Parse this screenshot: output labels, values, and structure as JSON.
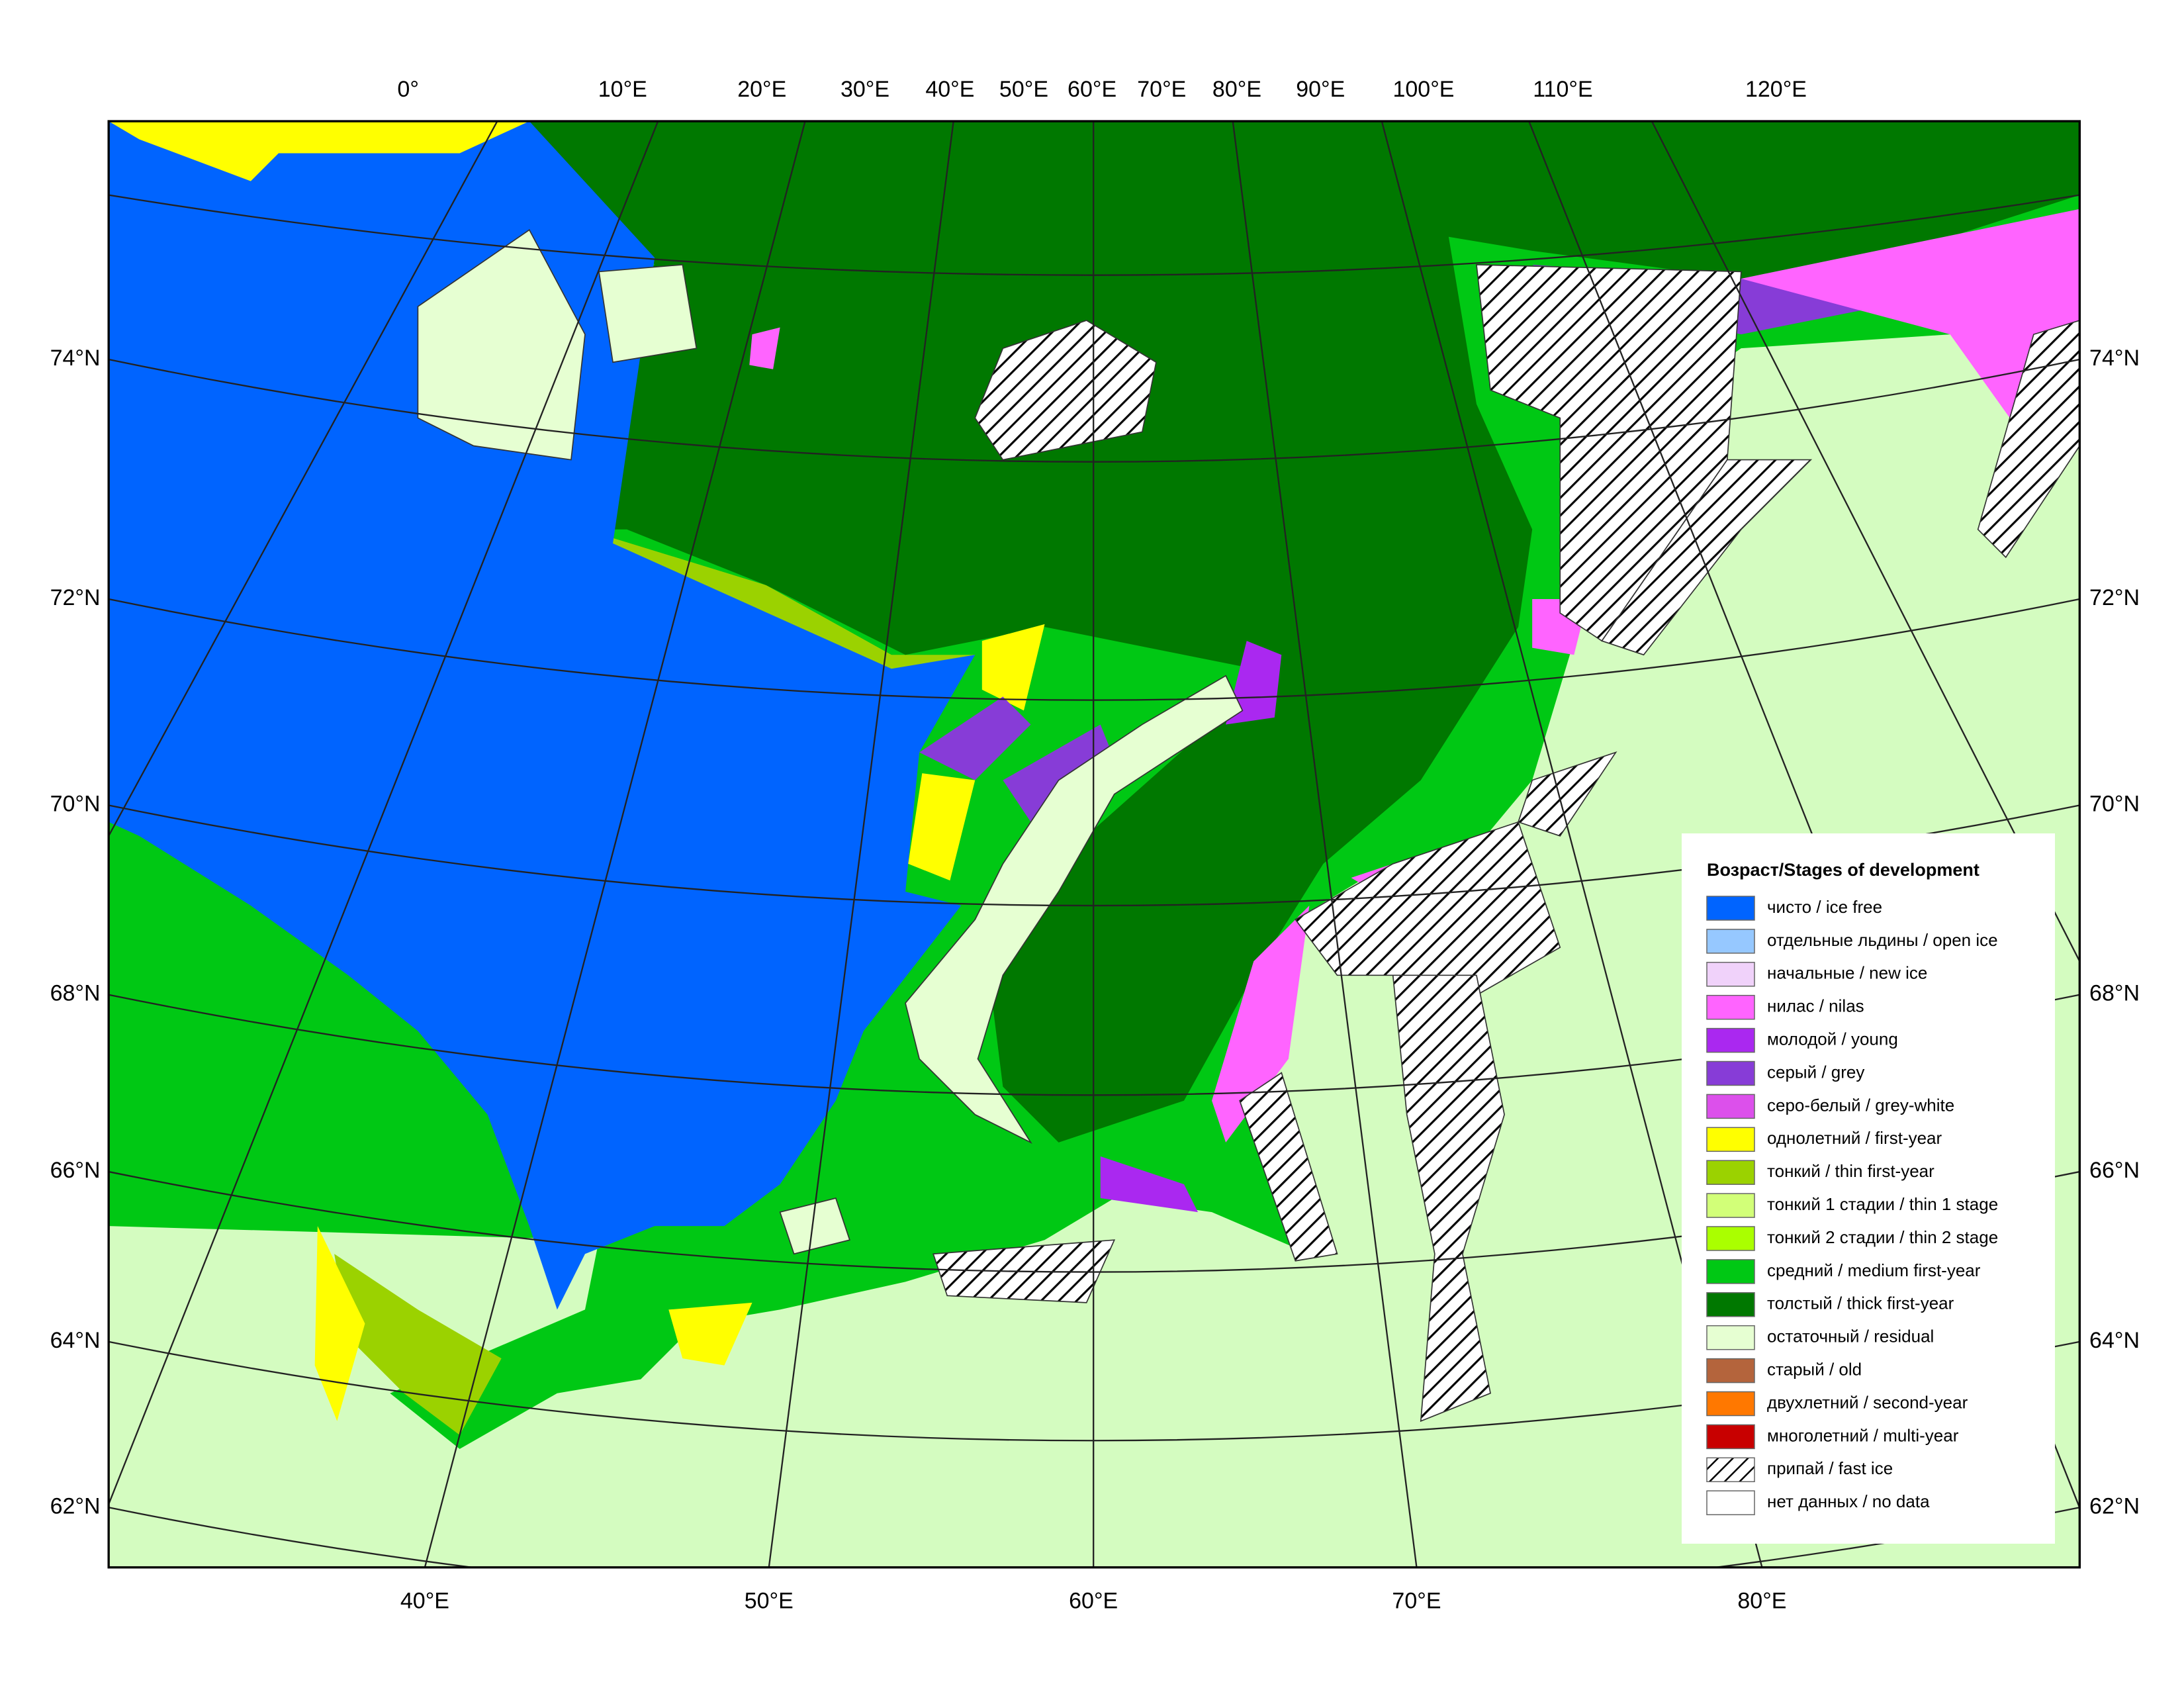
{
  "map": {
    "top_longitude_labels": [
      "0°",
      "10°E",
      "20°E",
      "30°E",
      "40°E",
      "50°E",
      "60°E",
      "70°E",
      "80°E",
      "90°E",
      "100°E",
      "110°E",
      "120°E"
    ],
    "left_latitude_labels": [
      "74°N",
      "72°N",
      "70°N",
      "68°N",
      "66°N",
      "64°N",
      "62°N"
    ],
    "right_latitude_labels": [
      "74°N",
      "72°N",
      "70°N",
      "68°N",
      "66°N",
      "64°N",
      "62°N"
    ],
    "bottom_longitude_labels": [
      "40°E",
      "50°E",
      "60°E",
      "70°E",
      "80°E"
    ],
    "legend": {
      "title": "Возраст/Stages of development",
      "items": [
        {
          "label": "чисто / ice free",
          "color": "#0064ff"
        },
        {
          "label": "отдельные льдины / open ice",
          "color": "#96c8ff"
        },
        {
          "label": "начальные / new ice",
          "color": "#f0d2fa"
        },
        {
          "label": "нилас / nilas",
          "color": "#ff64ff"
        },
        {
          "label": "молодой / young",
          "color": "#aa28f0"
        },
        {
          "label": "серый / grey",
          "color": "#873cd7"
        },
        {
          "label": "серо-белый / grey-white",
          "color": "#dc50eb"
        },
        {
          "label": "однолетний / first-year",
          "color": "#ffff00"
        },
        {
          "label": "тонкий / thin first-year",
          "color": "#9bd200"
        },
        {
          "label": "тонкий 1 стадии / thin 1 stage",
          "color": "#d2ff78"
        },
        {
          "label": "тонкий 2 стадии / thin 2 stage",
          "color": "#aaff00"
        },
        {
          "label": "средний / medium first-year",
          "color": "#00c814"
        },
        {
          "label": "толстый / thick first-year",
          "color": "#007800"
        },
        {
          "label": "остаточный / residual",
          "color": "#e6ffd2"
        },
        {
          "label": "старый / old",
          "color": "#b4643c"
        },
        {
          "label": "двухлетний / second-year",
          "color": "#ff7800"
        },
        {
          "label": "многолетний / multi-year",
          "color": "#c80000"
        },
        {
          "label": "припай / fast ice",
          "color": "#ffffff",
          "hatch": true
        },
        {
          "label": "нет данных / no data",
          "color": "#ffffff"
        }
      ]
    }
  }
}
